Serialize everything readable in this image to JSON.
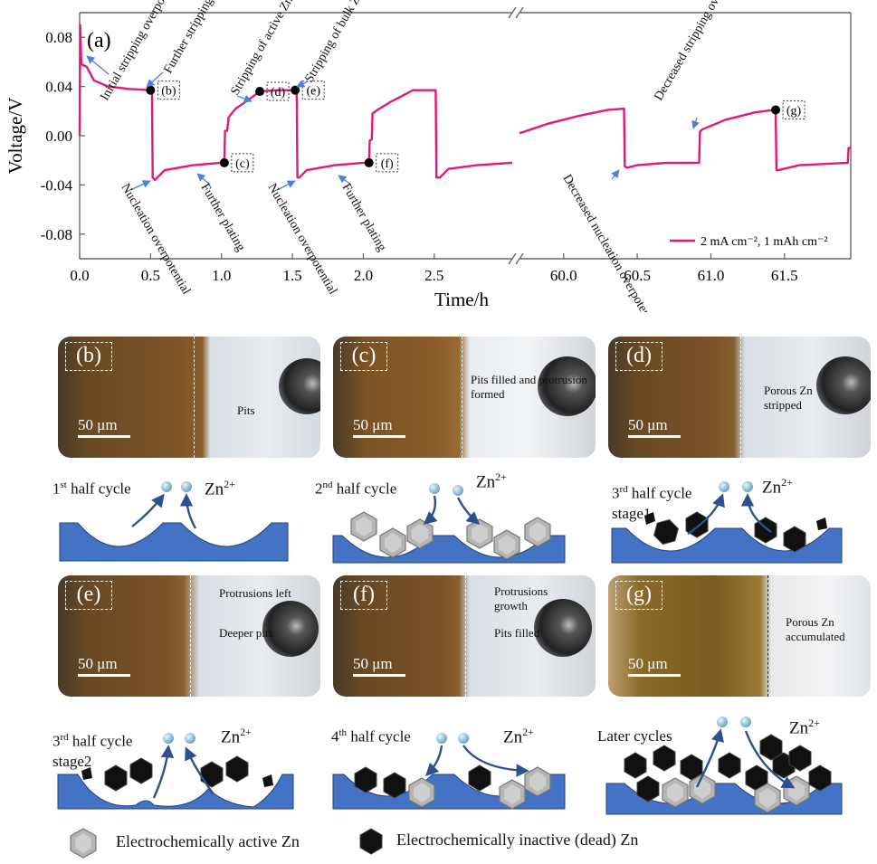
{
  "chart_data": {
    "type": "line",
    "panel_label": "(a)",
    "xlabel": "Time/h",
    "ylabel": "Voltage/V",
    "ylim": [
      -0.1,
      0.1
    ],
    "y_ticks": [
      "0.08",
      "0.04",
      "0.00",
      "-0.04",
      "-0.08"
    ],
    "y_tick_values": [
      0.08,
      0.04,
      0.0,
      -0.04,
      -0.08
    ],
    "x_ticks_left": [
      "0.0",
      "0.5",
      "1.0",
      "1.5",
      "2.0",
      "2.5"
    ],
    "x_tick_values_left": [
      0.0,
      0.5,
      1.0,
      1.5,
      2.0,
      2.5
    ],
    "x_ticks_right": [
      "60.0",
      "60.5",
      "61.0",
      "61.5"
    ],
    "x_tick_values_right": [
      60.0,
      60.5,
      61.0,
      61.5
    ],
    "xlim_left": [
      0.0,
      3.05
    ],
    "xlim_right": [
      59.7,
      61.95
    ],
    "axis_break": true,
    "legend": "2 mA cm⁻², 1 mAh cm⁻²",
    "line_color": "#e6177a",
    "series": [
      {
        "name": "2 mA cm⁻², 1 mAh cm⁻²",
        "segment": "left",
        "points": [
          [
            0.0,
            0.0
          ],
          [
            0.004,
            0.09
          ],
          [
            0.012,
            0.058
          ],
          [
            0.05,
            0.056
          ],
          [
            0.1,
            0.045
          ],
          [
            0.2,
            0.04
          ],
          [
            0.35,
            0.038
          ],
          [
            0.5,
            0.037
          ],
          [
            0.51,
            0.037
          ],
          [
            0.515,
            -0.034
          ],
          [
            0.53,
            -0.036
          ],
          [
            0.6,
            -0.028
          ],
          [
            0.8,
            -0.024
          ],
          [
            1.0,
            -0.022
          ],
          [
            1.02,
            -0.022
          ],
          [
            1.025,
            0.004
          ],
          [
            1.04,
            0.004
          ],
          [
            1.05,
            0.015
          ],
          [
            1.1,
            0.022
          ],
          [
            1.2,
            0.03
          ],
          [
            1.27,
            0.036
          ],
          [
            1.4,
            0.037
          ],
          [
            1.52,
            0.037
          ],
          [
            1.53,
            0.037
          ],
          [
            1.535,
            -0.034
          ],
          [
            1.55,
            -0.034
          ],
          [
            1.6,
            -0.028
          ],
          [
            1.8,
            -0.024
          ],
          [
            2.0,
            -0.022
          ],
          [
            2.04,
            -0.022
          ],
          [
            2.045,
            -0.004
          ],
          [
            2.06,
            -0.003
          ],
          [
            2.065,
            0.018
          ],
          [
            2.1,
            0.021
          ],
          [
            2.2,
            0.028
          ],
          [
            2.3,
            0.034
          ],
          [
            2.35,
            0.037
          ],
          [
            2.5,
            0.037
          ],
          [
            2.51,
            0.037
          ],
          [
            2.515,
            -0.034
          ],
          [
            2.54,
            -0.034
          ],
          [
            2.6,
            -0.027
          ],
          [
            2.8,
            -0.024
          ],
          [
            3.05,
            -0.022
          ]
        ]
      },
      {
        "name": "2 mA cm⁻², 1 mAh cm⁻²",
        "segment": "right",
        "points": [
          [
            59.7,
            0.002
          ],
          [
            59.9,
            0.01
          ],
          [
            60.1,
            0.016
          ],
          [
            60.3,
            0.021
          ],
          [
            60.41,
            0.022
          ],
          [
            60.415,
            -0.025
          ],
          [
            60.43,
            -0.026
          ],
          [
            60.5,
            -0.024
          ],
          [
            60.7,
            -0.022
          ],
          [
            60.92,
            -0.022
          ],
          [
            60.925,
            0.003
          ],
          [
            60.94,
            0.005
          ],
          [
            61.1,
            0.013
          ],
          [
            61.3,
            0.019
          ],
          [
            61.43,
            0.021
          ],
          [
            61.44,
            0.021
          ],
          [
            61.445,
            -0.028
          ],
          [
            61.46,
            -0.028
          ],
          [
            61.6,
            -0.024
          ],
          [
            61.93,
            -0.022
          ],
          [
            61.935,
            -0.01
          ],
          [
            61.95,
            -0.01
          ]
        ]
      }
    ],
    "markers": [
      {
        "label": "(b)",
        "x": 0.5,
        "y": 0.037,
        "segment": "left"
      },
      {
        "label": "(c)",
        "x": 1.02,
        "y": -0.022,
        "segment": "left"
      },
      {
        "label": "(d)",
        "x": 1.27,
        "y": 0.036,
        "segment": "left"
      },
      {
        "label": "(e)",
        "x": 1.52,
        "y": 0.037,
        "segment": "left"
      },
      {
        "label": "(f)",
        "x": 2.04,
        "y": -0.022,
        "segment": "left"
      },
      {
        "label": "(g)",
        "x": 61.44,
        "y": 0.021,
        "segment": "right"
      }
    ],
    "annotations": [
      {
        "text": "Initial stripping overpotential"
      },
      {
        "text": "Further stripping"
      },
      {
        "text": "Stripping of active Zn"
      },
      {
        "text": "Stripping of bulk Zn"
      },
      {
        "text": "Nucleation overpotential"
      },
      {
        "text": "Further plating"
      },
      {
        "text": "Nucleation overpotential"
      },
      {
        "text": "Further plating"
      },
      {
        "text": "Decreased nucleation overpotential"
      },
      {
        "text": "Decreased stripping overpotential"
      }
    ]
  },
  "panels": [
    {
      "label": "(b)",
      "scale": "50 μm",
      "annot": [
        "Pits"
      ]
    },
    {
      "label": "(c)",
      "scale": "50 μm",
      "annot": [
        "Pits filled and protrusion formed"
      ]
    },
    {
      "label": "(d)",
      "scale": "50 μm",
      "annot": [
        "Porous Zn stripped"
      ]
    },
    {
      "label": "(e)",
      "scale": "50 μm",
      "annot": [
        "Protrusions left",
        "Deeper pits"
      ]
    },
    {
      "label": "(f)",
      "scale": "50 μm",
      "annot": [
        "Protrusions growth",
        "Pits filled"
      ]
    },
    {
      "label": "(g)",
      "scale": "50 μm",
      "annot": [
        "Porous Zn accumulated"
      ]
    }
  ],
  "schematics": [
    {
      "caption_num": "1",
      "caption_sup": "st",
      "caption_rest": " half cycle",
      "caption_line2": ""
    },
    {
      "caption_num": "2",
      "caption_sup": "nd",
      "caption_rest": " half cycle",
      "caption_line2": ""
    },
    {
      "caption_num": "3",
      "caption_sup": "rd",
      "caption_rest": " half cycle",
      "caption_line2": "stage1"
    },
    {
      "caption_num": "3",
      "caption_sup": "rd",
      "caption_rest": " half cycle",
      "caption_line2": "stage2"
    },
    {
      "caption_num": "4",
      "caption_sup": "th",
      "caption_rest": " half cycle",
      "caption_line2": ""
    },
    {
      "caption_num": "",
      "caption_sup": "",
      "caption_rest": "Later cycles",
      "caption_line2": ""
    }
  ],
  "ion": {
    "base": "Zn",
    "sup": "2+"
  },
  "legend_bottom": {
    "active": "Electrochemically active Zn",
    "inactive": "Electrochemically inactive (dead) Zn"
  },
  "colors": {
    "line": "#e6177a",
    "substrate": "#4472c4",
    "active_zn": "#b5b5b5",
    "dead_zn": "#111111",
    "arrow": "#2f4f8f",
    "annot_arrow": "#4f7fd6"
  }
}
